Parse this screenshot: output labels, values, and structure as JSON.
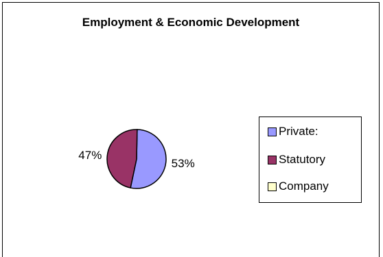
{
  "chart_data": {
    "type": "pie",
    "title": "Employment & Economic Development",
    "categories": [
      "Private:",
      "Statutory",
      "Company"
    ],
    "values": [
      53,
      47,
      0
    ],
    "labels": [
      "53%",
      "47%",
      ""
    ],
    "colors": [
      "#9999FF",
      "#993366",
      "#FFFFCC"
    ],
    "legend_position": "right"
  }
}
